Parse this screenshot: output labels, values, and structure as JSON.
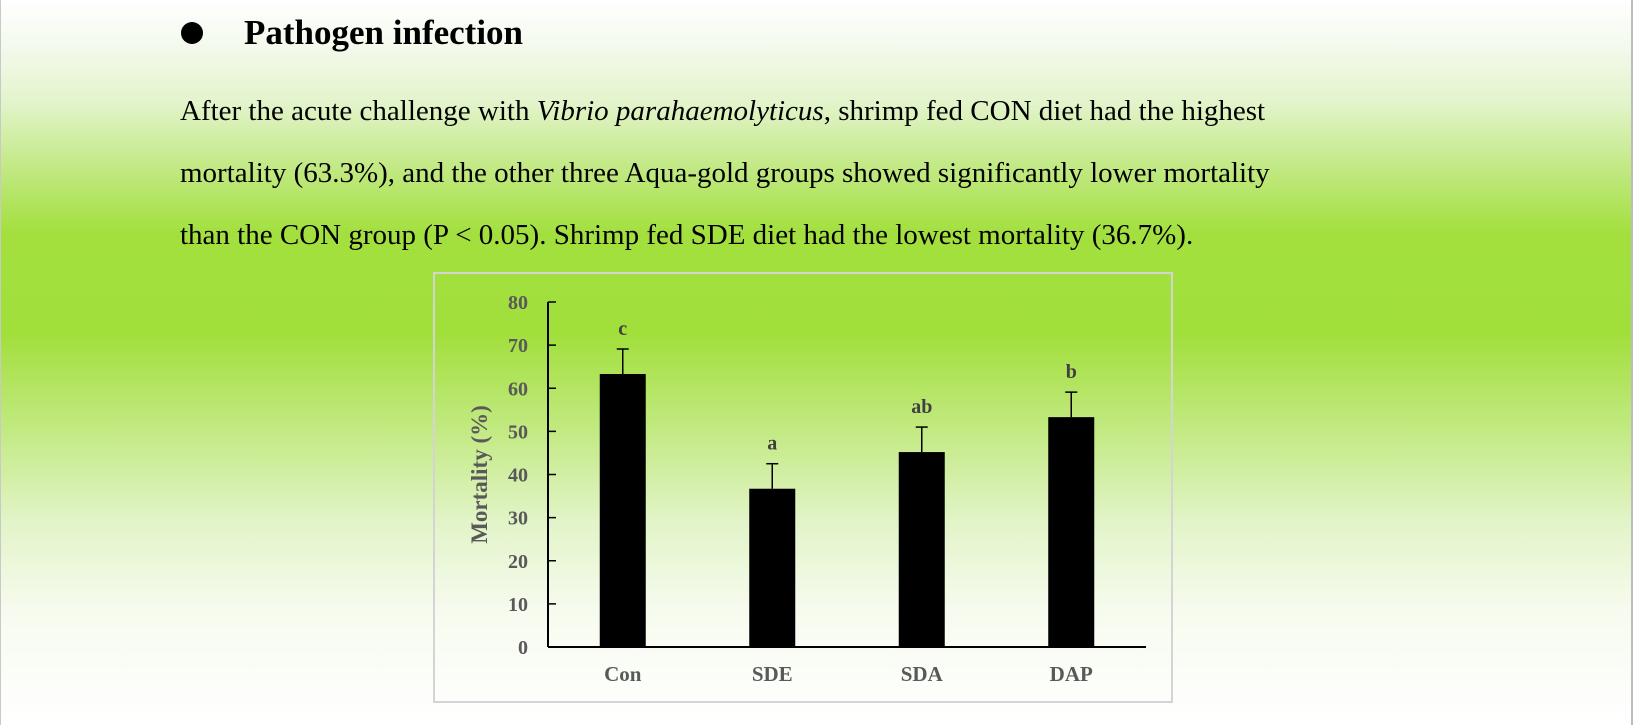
{
  "heading": {
    "text": "Pathogen infection",
    "bullet_icon": "filled-circle-bullet-icon"
  },
  "paragraph": {
    "line1_a": "After the acute challenge with ",
    "line1_italic": "Vibrio parahaemolyticus",
    "line1_b": ", shrimp fed CON diet had the highest",
    "line2": "mortality (63.3%), and the other three Aqua-gold groups showed significantly lower mortality",
    "line3": "than the CON group (P < 0.05). Shrimp fed SDE diet had the lowest mortality (36.7%)."
  },
  "chart_data": {
    "type": "bar",
    "categories": [
      "Con",
      "SDE",
      "SDA",
      "DAP"
    ],
    "values": [
      63.3,
      36.7,
      45.2,
      53.3
    ],
    "error": [
      5.8,
      5.8,
      5.8,
      5.8
    ],
    "significance": [
      "c",
      "a",
      "ab",
      "b"
    ],
    "ylabel": "Mortality (%)",
    "xlabel": "",
    "ylim": [
      0,
      80
    ],
    "yticks": [
      0,
      10,
      20,
      30,
      40,
      50,
      60,
      70,
      80
    ],
    "grid": false,
    "legend": "none",
    "bar_color": "#000000",
    "text_color": "#595959"
  }
}
